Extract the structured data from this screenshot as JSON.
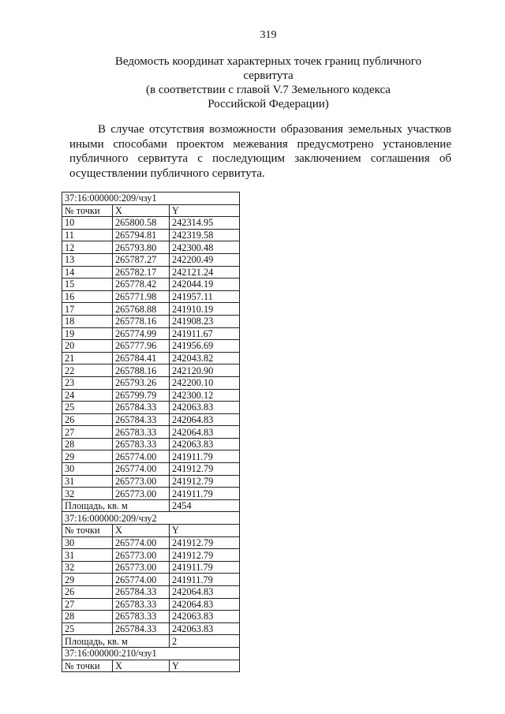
{
  "page_number": "319",
  "title": [
    "Ведомость координат характерных точек границ публичного",
    "сервитута",
    "(в соответствии с главой V.7 Земельного кодекса",
    "Российской Федерации)"
  ],
  "paragraph": "В случае отсутствия возможности образования земельных участков иными способами проектом межевания предусмотрено установление публичного сервитута с последующим заключением соглашения об осуществлении публичного сервитута.",
  "columns": {
    "point": "№ точки",
    "x": "X",
    "y": "Y"
  },
  "area_label": "Площадь, кв. м",
  "sections": [
    {
      "id": "37:16:000000:209/чзу1",
      "area": "2454",
      "rows": [
        [
          "10",
          "265800.58",
          "242314.95"
        ],
        [
          "11",
          "265794.81",
          "242319.58"
        ],
        [
          "12",
          "265793.80",
          "242300.48"
        ],
        [
          "13",
          "265787.27",
          "242200.49"
        ],
        [
          "14",
          "265782.17",
          "242121.24"
        ],
        [
          "15",
          "265778.42",
          "242044.19"
        ],
        [
          "16",
          "265771.98",
          "241957.11"
        ],
        [
          "17",
          "265768.88",
          "241910.19"
        ],
        [
          "18",
          "265778.16",
          "241908.23"
        ],
        [
          "19",
          "265774.99",
          "241911.67"
        ],
        [
          "20",
          "265777.96",
          "241956.69"
        ],
        [
          "21",
          "265784.41",
          "242043.82"
        ],
        [
          "22",
          "265788.16",
          "242120.90"
        ],
        [
          "23",
          "265793.26",
          "242200.10"
        ],
        [
          "24",
          "265799.79",
          "242300.12"
        ],
        [
          "25",
          "265784.33",
          "242063.83"
        ],
        [
          "26",
          "265784.33",
          "242064.83"
        ],
        [
          "27",
          "265783.33",
          "242064.83"
        ],
        [
          "28",
          "265783.33",
          "242063.83"
        ],
        [
          "29",
          "265774.00",
          "241911.79"
        ],
        [
          "30",
          "265774.00",
          "241912.79"
        ],
        [
          "31",
          "265773.00",
          "241912.79"
        ],
        [
          "32",
          "265773.00",
          "241911.79"
        ]
      ]
    },
    {
      "id": "37:16:000000:209/чзу2",
      "area": "2",
      "rows": [
        [
          "30",
          "265774.00",
          "241912.79"
        ],
        [
          "31",
          "265773.00",
          "241912.79"
        ],
        [
          "32",
          "265773.00",
          "241911.79"
        ],
        [
          "29",
          "265774.00",
          "241911.79"
        ],
        [
          "26",
          "265784.33",
          "242064.83"
        ],
        [
          "27",
          "265783.33",
          "242064.83"
        ],
        [
          "28",
          "265783.33",
          "242063.83"
        ],
        [
          "25",
          "265784.33",
          "242063.83"
        ]
      ]
    },
    {
      "id": "37:16:000000:210/чзу1",
      "rows": []
    }
  ]
}
